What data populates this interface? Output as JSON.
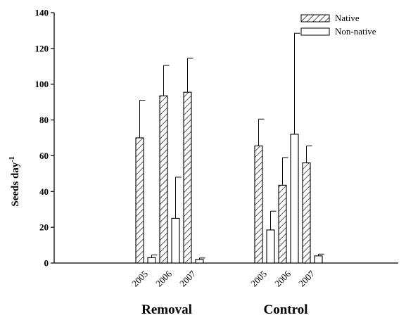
{
  "chart_data": {
    "type": "bar",
    "title": "",
    "xlabel": "",
    "ylabel": "Seeds day",
    "ylabel_superscript": "-1",
    "ylim": [
      0,
      140
    ],
    "yticks": [
      0,
      20,
      40,
      60,
      80,
      100,
      120,
      140
    ],
    "groups": [
      {
        "name": "Removal",
        "years": [
          "2005",
          "2006",
          "2007"
        ]
      },
      {
        "name": "Control",
        "years": [
          "2005",
          "2006",
          "2007"
        ]
      }
    ],
    "series": [
      {
        "name": "Native",
        "pattern": "hatched",
        "values": [
          [
            70,
            93.5,
            95.5
          ],
          [
            65.5,
            43.5,
            56
          ]
        ],
        "errors": [
          [
            21,
            17,
            19
          ],
          [
            15,
            15.5,
            9.5
          ]
        ]
      },
      {
        "name": "Non-native",
        "pattern": "open",
        "values": [
          [
            3,
            25,
            2
          ],
          [
            18.5,
            72,
            4
          ]
        ],
        "errors": [
          [
            1.5,
            23,
            0.8
          ],
          [
            10.5,
            56.5,
            1
          ]
        ]
      }
    ],
    "legend_position": "top-right",
    "grid": false
  }
}
